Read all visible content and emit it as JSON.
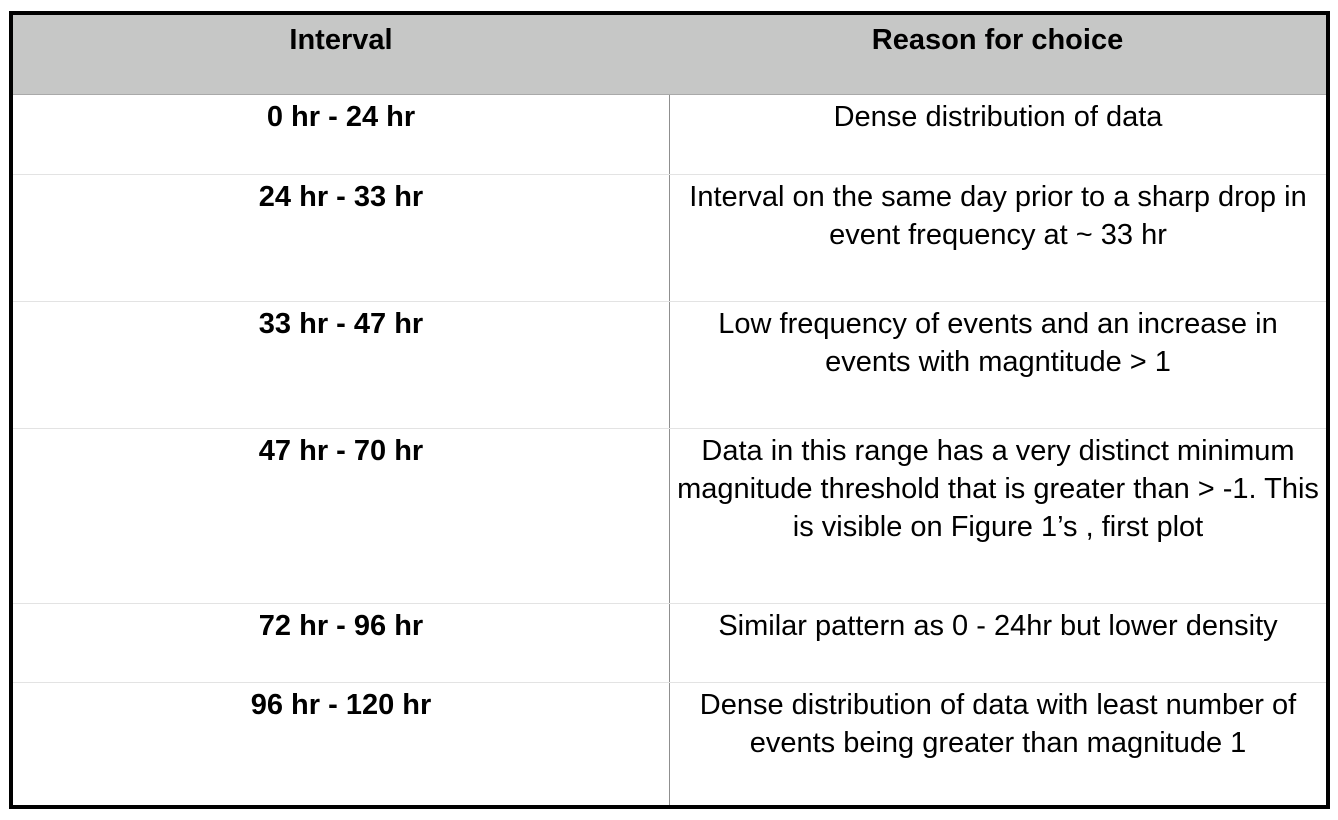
{
  "table": {
    "headers": {
      "interval": "Interval",
      "reason": "Reason for choice"
    },
    "rows": [
      {
        "interval": "0 hr - 24 hr",
        "reason": "Dense distribution of data"
      },
      {
        "interval": "24 hr - 33 hr",
        "reason": "Interval on the same day prior to a sharp drop in event frequency at ~ 33 hr"
      },
      {
        "interval": "33 hr - 47 hr",
        "reason": "Low frequency of events and an increase in events with magntitude > 1"
      },
      {
        "interval": "47 hr - 70 hr",
        "reason": "Data in this range has a very distinct minimum magnitude threshold that is greater than > -1. This is visible on Figure 1’s , first plot"
      },
      {
        "interval": "72 hr - 96 hr",
        "reason": "Similar pattern as 0 - 24hr but lower density"
      },
      {
        "interval": "96 hr - 120 hr",
        "reason": "Dense distribution of data with least number of events being greater than magnitude 1"
      }
    ]
  }
}
